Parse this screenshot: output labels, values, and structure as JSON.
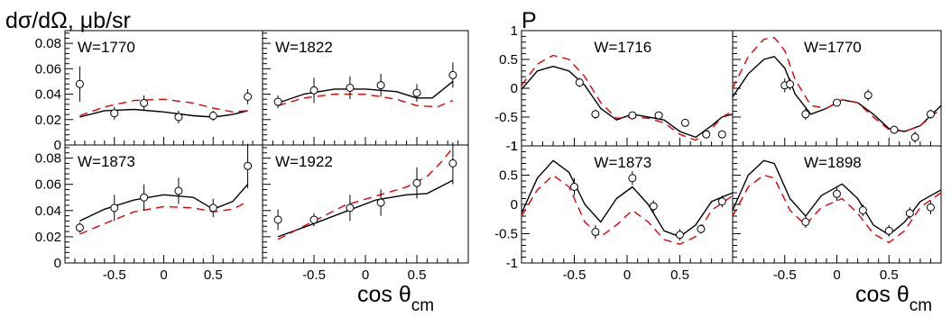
{
  "figure": {
    "left_title": "dσ/dΩ, μb/sr",
    "right_title": "P",
    "xlabel_left": "cos θ",
    "xlabel_left_sub": "cm",
    "xlabel_right": "cos θ",
    "xlabel_right_sub": "cm"
  },
  "colors": {
    "model_solid": "#000000",
    "model_dashed": "#dd0000",
    "data": "#000000"
  },
  "chart_data": [
    {
      "id": "xs-1770",
      "type": "scatter",
      "label": "W=1770",
      "xlim": [
        -1,
        1
      ],
      "ylim": [
        0,
        0.09
      ],
      "yticks": [
        0,
        0.02,
        0.04,
        0.06,
        0.08
      ],
      "ytick_labels": [
        "0",
        "0.02",
        "0.04",
        "0.06",
        "0.08"
      ],
      "xticks": [
        -0.5,
        0,
        0.5
      ],
      "xtick_labels": [],
      "points": [
        {
          "x": -0.85,
          "y": 0.048,
          "err": 0.014
        },
        {
          "x": -0.5,
          "y": 0.025,
          "err": 0.005
        },
        {
          "x": -0.2,
          "y": 0.033,
          "err": 0.006
        },
        {
          "x": 0.15,
          "y": 0.022,
          "err": 0.005
        },
        {
          "x": 0.5,
          "y": 0.023,
          "err": 0.004
        },
        {
          "x": 0.85,
          "y": 0.038,
          "err": 0.006
        }
      ],
      "series": [
        {
          "style": "solid",
          "x": [
            -0.85,
            -0.6,
            -0.3,
            0,
            0.3,
            0.5,
            0.7,
            0.85
          ],
          "y": [
            0.022,
            0.027,
            0.028,
            0.026,
            0.023,
            0.022,
            0.024,
            0.027
          ]
        },
        {
          "style": "dashed",
          "x": [
            -0.85,
            -0.6,
            -0.3,
            0,
            0.3,
            0.5,
            0.7,
            0.85
          ],
          "y": [
            0.023,
            0.03,
            0.035,
            0.036,
            0.033,
            0.029,
            0.026,
            0.027
          ]
        }
      ]
    },
    {
      "id": "xs-1822",
      "type": "scatter",
      "label": "W=1822",
      "xlim": [
        -1,
        1
      ],
      "ylim": [
        0,
        0.09
      ],
      "yticks": [
        0,
        0.02,
        0.04,
        0.06,
        0.08
      ],
      "ytick_labels": [],
      "xticks": [
        -0.5,
        0,
        0.5
      ],
      "xtick_labels": [],
      "points": [
        {
          "x": -0.85,
          "y": 0.034,
          "err": 0.005
        },
        {
          "x": -0.5,
          "y": 0.043,
          "err": 0.01
        },
        {
          "x": -0.15,
          "y": 0.045,
          "err": 0.009
        },
        {
          "x": 0.15,
          "y": 0.047,
          "err": 0.009
        },
        {
          "x": 0.5,
          "y": 0.041,
          "err": 0.007
        },
        {
          "x": 0.85,
          "y": 0.055,
          "err": 0.01
        }
      ],
      "series": [
        {
          "style": "solid",
          "x": [
            -0.85,
            -0.6,
            -0.3,
            0,
            0.3,
            0.5,
            0.65,
            0.85
          ],
          "y": [
            0.033,
            0.04,
            0.044,
            0.044,
            0.042,
            0.037,
            0.037,
            0.05
          ]
        },
        {
          "style": "dashed",
          "x": [
            -0.85,
            -0.6,
            -0.3,
            0,
            0.3,
            0.5,
            0.7,
            0.85
          ],
          "y": [
            0.031,
            0.037,
            0.04,
            0.04,
            0.036,
            0.031,
            0.03,
            0.035
          ]
        }
      ]
    },
    {
      "id": "xs-1873",
      "type": "scatter",
      "label": "W=1873",
      "xlim": [
        -1,
        1
      ],
      "ylim": [
        0,
        0.09
      ],
      "yticks": [
        0,
        0.02,
        0.04,
        0.06,
        0.08
      ],
      "ytick_labels": [
        "0",
        "0.02",
        "0.04",
        "0.06",
        "0.08"
      ],
      "xticks": [
        -0.5,
        0,
        0.5
      ],
      "xtick_labels": [
        "-0.5",
        "0",
        "0.5"
      ],
      "points": [
        {
          "x": -0.85,
          "y": 0.027,
          "err": 0.004
        },
        {
          "x": -0.5,
          "y": 0.042,
          "err": 0.01
        },
        {
          "x": -0.2,
          "y": 0.05,
          "err": 0.01
        },
        {
          "x": 0.15,
          "y": 0.055,
          "err": 0.01
        },
        {
          "x": 0.5,
          "y": 0.042,
          "err": 0.007
        },
        {
          "x": 0.85,
          "y": 0.074,
          "err": 0.017
        }
      ],
      "series": [
        {
          "style": "solid",
          "x": [
            -0.85,
            -0.6,
            -0.3,
            0,
            0.3,
            0.5,
            0.7,
            0.85
          ],
          "y": [
            0.032,
            0.041,
            0.048,
            0.052,
            0.05,
            0.041,
            0.047,
            0.06
          ]
        },
        {
          "style": "dashed",
          "x": [
            -0.85,
            -0.6,
            -0.3,
            0,
            0.3,
            0.5,
            0.7,
            0.85
          ],
          "y": [
            0.022,
            0.03,
            0.039,
            0.043,
            0.042,
            0.039,
            0.041,
            0.047
          ]
        }
      ]
    },
    {
      "id": "xs-1922",
      "type": "scatter",
      "label": "W=1922",
      "xlim": [
        -1,
        1
      ],
      "ylim": [
        0,
        0.09
      ],
      "yticks": [
        0,
        0.02,
        0.04,
        0.06,
        0.08
      ],
      "ytick_labels": [],
      "xticks": [
        -0.5,
        0,
        0.5
      ],
      "xtick_labels": [
        "-0.5",
        "0",
        "0.5"
      ],
      "points": [
        {
          "x": -0.85,
          "y": 0.033,
          "err": 0.008
        },
        {
          "x": -0.5,
          "y": 0.033,
          "err": 0.005
        },
        {
          "x": -0.15,
          "y": 0.042,
          "err": 0.01
        },
        {
          "x": 0.15,
          "y": 0.046,
          "err": 0.01
        },
        {
          "x": 0.5,
          "y": 0.061,
          "err": 0.012
        },
        {
          "x": 0.85,
          "y": 0.076,
          "err": 0.016
        }
      ],
      "series": [
        {
          "style": "solid",
          "x": [
            -0.85,
            -0.5,
            -0.2,
            0.1,
            0.4,
            0.6,
            0.85
          ],
          "y": [
            0.02,
            0.03,
            0.039,
            0.048,
            0.052,
            0.053,
            0.063
          ]
        },
        {
          "style": "dashed",
          "x": [
            -0.85,
            -0.5,
            -0.2,
            0.1,
            0.4,
            0.6,
            0.75,
            0.85
          ],
          "y": [
            0.018,
            0.032,
            0.044,
            0.051,
            0.058,
            0.066,
            0.078,
            0.088
          ]
        }
      ]
    },
    {
      "id": "p-1716",
      "type": "scatter",
      "label": "W=1716",
      "xlim": [
        -1,
        1
      ],
      "ylim": [
        -1,
        1
      ],
      "yticks": [
        -1,
        -0.5,
        0,
        0.5,
        1
      ],
      "ytick_labels": [
        "-1",
        "-0.5",
        "0",
        "0.5",
        "1"
      ],
      "xticks": [
        -0.5,
        0,
        0.5
      ],
      "xtick_labels": [],
      "points": [
        {
          "x": -0.45,
          "y": 0.1,
          "err": 0.08
        },
        {
          "x": -0.3,
          "y": -0.45,
          "err": 0.08
        },
        {
          "x": 0.05,
          "y": -0.47,
          "err": 0.06
        },
        {
          "x": 0.3,
          "y": -0.47,
          "err": 0.06
        },
        {
          "x": 0.55,
          "y": -0.6,
          "err": 0.06
        },
        {
          "x": 0.75,
          "y": -0.8,
          "err": 0.06
        },
        {
          "x": 0.9,
          "y": -0.8,
          "err": 0.05
        }
      ],
      "series": [
        {
          "style": "solid",
          "x": [
            -1,
            -0.85,
            -0.7,
            -0.55,
            -0.4,
            -0.25,
            -0.1,
            0.05,
            0.2,
            0.35,
            0.5,
            0.65,
            0.8,
            0.9,
            1
          ],
          "y": [
            -0.02,
            0.3,
            0.38,
            0.3,
            0.05,
            -0.35,
            -0.55,
            -0.45,
            -0.5,
            -0.55,
            -0.75,
            -0.85,
            -0.65,
            -0.5,
            -0.45
          ]
        },
        {
          "style": "dashed",
          "x": [
            -1,
            -0.85,
            -0.7,
            -0.55,
            -0.4,
            -0.25,
            -0.1,
            0.05,
            0.2,
            0.35,
            0.5,
            0.65,
            0.8,
            0.9,
            1
          ],
          "y": [
            0.05,
            0.42,
            0.57,
            0.5,
            0.2,
            -0.25,
            -0.52,
            -0.5,
            -0.52,
            -0.6,
            -0.8,
            -0.9,
            -0.7,
            -0.5,
            -0.4
          ]
        }
      ]
    },
    {
      "id": "p-1770",
      "type": "scatter",
      "label": "W=1770",
      "xlim": [
        -1,
        1
      ],
      "ylim": [
        -1,
        1
      ],
      "yticks": [
        -1,
        -0.5,
        0,
        0.5,
        1
      ],
      "ytick_labels": [],
      "xticks": [
        -0.5,
        0,
        0.5
      ],
      "xtick_labels": [],
      "points": [
        {
          "x": -0.5,
          "y": 0.05,
          "err": 0.12
        },
        {
          "x": -0.45,
          "y": 0.07,
          "err": 0.1
        },
        {
          "x": -0.3,
          "y": -0.45,
          "err": 0.1
        },
        {
          "x": 0.0,
          "y": -0.25,
          "err": 0.06
        },
        {
          "x": 0.3,
          "y": -0.12,
          "err": 0.1
        },
        {
          "x": 0.55,
          "y": -0.72,
          "err": 0.05
        },
        {
          "x": 0.75,
          "y": -0.85,
          "err": 0.1
        },
        {
          "x": 0.9,
          "y": -0.45,
          "err": 0.08
        }
      ],
      "series": [
        {
          "style": "solid",
          "x": [
            -1,
            -0.85,
            -0.7,
            -0.6,
            -0.5,
            -0.4,
            -0.25,
            -0.1,
            0.05,
            0.2,
            0.35,
            0.5,
            0.65,
            0.8,
            1
          ],
          "y": [
            -0.15,
            0.25,
            0.5,
            0.55,
            0.35,
            -0.1,
            -0.45,
            -0.35,
            -0.2,
            -0.25,
            -0.45,
            -0.7,
            -0.75,
            -0.65,
            -0.3
          ]
        },
        {
          "style": "dashed",
          "x": [
            -1,
            -0.85,
            -0.7,
            -0.6,
            -0.5,
            -0.4,
            -0.25,
            -0.1,
            0.05,
            0.2,
            0.35,
            0.5,
            0.65,
            0.8,
            1
          ],
          "y": [
            0.0,
            0.55,
            0.85,
            0.88,
            0.65,
            0.15,
            -0.3,
            -0.35,
            -0.2,
            -0.25,
            -0.5,
            -0.72,
            -0.75,
            -0.65,
            -0.35
          ]
        }
      ]
    },
    {
      "id": "p-1873",
      "type": "scatter",
      "label": "W=1873",
      "xlim": [
        -1,
        1
      ],
      "ylim": [
        -1,
        1
      ],
      "yticks": [
        -1,
        -0.5,
        0,
        0.5,
        1
      ],
      "ytick_labels": [
        "-1",
        "-0.5",
        "0",
        "0.5",
        "1"
      ],
      "xticks": [
        -0.5,
        0,
        0.5
      ],
      "xtick_labels": [
        "-0.5",
        "0",
        "0.5"
      ],
      "points": [
        {
          "x": -0.5,
          "y": 0.3,
          "err": 0.15
        },
        {
          "x": -0.3,
          "y": -0.47,
          "err": 0.12
        },
        {
          "x": 0.05,
          "y": 0.45,
          "err": 0.12
        },
        {
          "x": 0.25,
          "y": -0.03,
          "err": 0.1
        },
        {
          "x": 0.5,
          "y": -0.52,
          "err": 0.1
        },
        {
          "x": 0.7,
          "y": -0.42,
          "err": 0.08
        },
        {
          "x": 0.9,
          "y": 0.05,
          "err": 0.1
        }
      ],
      "series": [
        {
          "style": "solid",
          "x": [
            -1,
            -0.85,
            -0.7,
            -0.55,
            -0.4,
            -0.25,
            -0.1,
            0.05,
            0.2,
            0.35,
            0.5,
            0.65,
            0.8,
            1
          ],
          "y": [
            -0.15,
            0.45,
            0.75,
            0.55,
            0.0,
            -0.3,
            0.1,
            0.3,
            0.0,
            -0.45,
            -0.55,
            -0.35,
            0.05,
            0.2
          ]
        },
        {
          "style": "dashed",
          "x": [
            -1,
            -0.85,
            -0.7,
            -0.55,
            -0.4,
            -0.25,
            -0.1,
            0.05,
            0.2,
            0.35,
            0.5,
            0.65,
            0.8,
            1
          ],
          "y": [
            -0.2,
            0.25,
            0.5,
            0.3,
            -0.3,
            -0.55,
            -0.35,
            -0.1,
            -0.3,
            -0.6,
            -0.68,
            -0.55,
            -0.1,
            0.15
          ]
        }
      ]
    },
    {
      "id": "p-1898",
      "type": "scatter",
      "label": "W=1898",
      "xlim": [
        -1,
        1
      ],
      "ylim": [
        -1,
        1
      ],
      "yticks": [
        -1,
        -0.5,
        0,
        0.5,
        1
      ],
      "ytick_labels": [],
      "xticks": [
        -0.5,
        0,
        0.5
      ],
      "xtick_labels": [
        "-0.5",
        "0",
        "0.5"
      ],
      "points": [
        {
          "x": -0.3,
          "y": -0.3,
          "err": 0.1
        },
        {
          "x": 0.0,
          "y": 0.18,
          "err": 0.12
        },
        {
          "x": 0.25,
          "y": -0.1,
          "err": 0.1
        },
        {
          "x": 0.5,
          "y": -0.45,
          "err": 0.1
        },
        {
          "x": 0.7,
          "y": -0.15,
          "err": 0.1
        },
        {
          "x": 0.9,
          "y": -0.05,
          "err": 0.12
        }
      ],
      "series": [
        {
          "style": "solid",
          "x": [
            -1,
            -0.85,
            -0.7,
            -0.6,
            -0.45,
            -0.3,
            -0.15,
            0.05,
            0.2,
            0.35,
            0.5,
            0.65,
            0.8,
            1
          ],
          "y": [
            -0.1,
            0.5,
            0.75,
            0.7,
            0.1,
            -0.2,
            0.15,
            0.35,
            0.1,
            -0.35,
            -0.52,
            -0.3,
            0.05,
            0.25
          ]
        },
        {
          "style": "dashed",
          "x": [
            -1,
            -0.85,
            -0.7,
            -0.6,
            -0.45,
            -0.3,
            -0.15,
            0.05,
            0.2,
            0.35,
            0.5,
            0.65,
            0.8,
            1
          ],
          "y": [
            -0.2,
            0.3,
            0.5,
            0.45,
            -0.1,
            -0.35,
            -0.05,
            0.1,
            -0.15,
            -0.5,
            -0.65,
            -0.45,
            -0.05,
            0.2
          ]
        }
      ]
    }
  ]
}
